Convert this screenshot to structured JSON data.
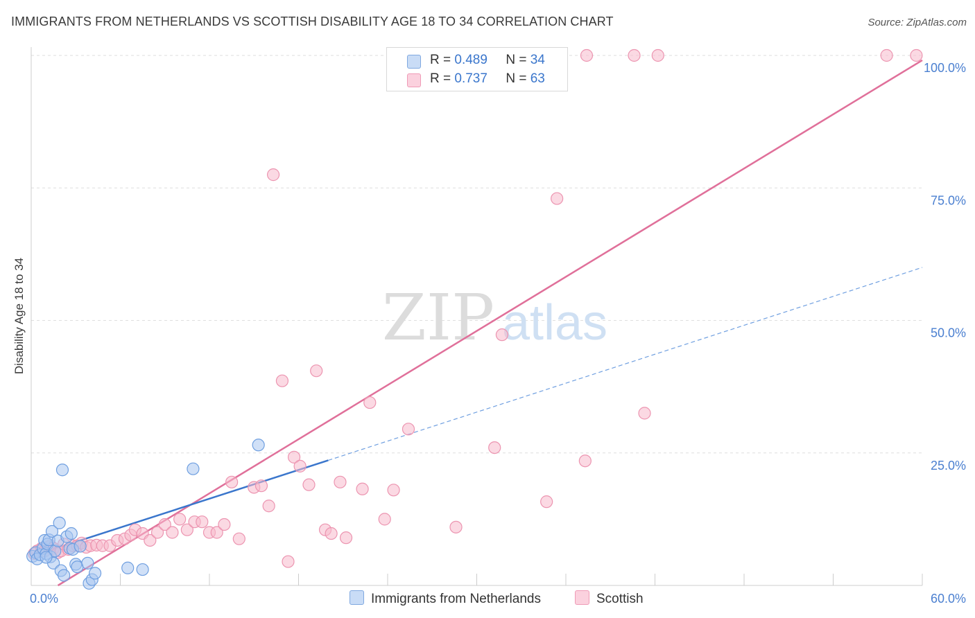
{
  "header": {
    "title": "IMMIGRANTS FROM NETHERLANDS VS SCOTTISH DISABILITY AGE 18 TO 34 CORRELATION CHART",
    "source": "Source: ZipAtlas.com"
  },
  "watermark": {
    "zip": "ZIP",
    "atlas": "atlas"
  },
  "legend": {
    "rows": [
      {
        "r_label": "R =",
        "r_value": "0.489",
        "n_label": "N =",
        "n_value": "34",
        "color": "#a9c7f0"
      },
      {
        "r_label": "R =",
        "r_value": "0.737",
        "n_label": "N =",
        "n_value": "63",
        "color": "#f7b9cc"
      }
    ]
  },
  "bottom_legend": {
    "items": [
      {
        "label": "Immigrants from Netherlands",
        "color": "#a9c7f0"
      },
      {
        "label": "Scottish",
        "color": "#f7b9cc"
      }
    ]
  },
  "chart_data": {
    "type": "scatter",
    "ylabel": "Disability Age 18 to 34",
    "xlim": [
      0,
      60
    ],
    "ylim": [
      0,
      100
    ],
    "x_tick_labels": [
      "0.0%",
      "60.0%"
    ],
    "y_ticks": [
      25,
      50,
      75,
      100
    ],
    "y_tick_labels": [
      "25.0%",
      "50.0%",
      "75.0%",
      "100.0%"
    ],
    "grid": "horizontal dashed",
    "series": [
      {
        "name": "Immigrants from Netherlands",
        "color": "#a9c7f0",
        "stroke": "#6f9fe0",
        "line_color": "#3a76cc",
        "trend": {
          "x0": 0,
          "y0": 5.5,
          "x1": 20,
          "y1": 23.6,
          "x_ext": 60,
          "y_ext": 60
        },
        "points": [
          [
            0.1,
            5.5
          ],
          [
            0.3,
            6.2
          ],
          [
            0.4,
            5.0
          ],
          [
            0.6,
            5.8
          ],
          [
            0.8,
            7.0
          ],
          [
            0.9,
            8.5
          ],
          [
            1.0,
            6.0
          ],
          [
            1.1,
            7.8
          ],
          [
            1.2,
            8.6
          ],
          [
            1.3,
            5.4
          ],
          [
            1.4,
            10.2
          ],
          [
            1.5,
            4.2
          ],
          [
            1.6,
            6.5
          ],
          [
            1.8,
            8.4
          ],
          [
            1.9,
            11.8
          ],
          [
            2.0,
            2.8
          ],
          [
            2.1,
            21.8
          ],
          [
            2.2,
            1.9
          ],
          [
            2.4,
            9.2
          ],
          [
            2.6,
            7.0
          ],
          [
            2.7,
            9.8
          ],
          [
            2.8,
            6.8
          ],
          [
            3.0,
            4.0
          ],
          [
            3.1,
            3.5
          ],
          [
            3.3,
            7.4
          ],
          [
            3.8,
            4.2
          ],
          [
            3.9,
            0.4
          ],
          [
            4.1,
            1.1
          ],
          [
            4.3,
            2.3
          ],
          [
            6.5,
            3.3
          ],
          [
            7.5,
            3.0
          ],
          [
            10.9,
            22.0
          ],
          [
            15.3,
            26.5
          ],
          [
            1.0,
            5.3
          ]
        ]
      },
      {
        "name": "Scottish",
        "color": "#f7b9cc",
        "stroke": "#ec94b0",
        "line_color": "#e0709a",
        "trend": {
          "x0": 1.8,
          "y0": 0,
          "x1": 60,
          "y1": 99.1
        },
        "points": [
          [
            0.2,
            6.0
          ],
          [
            0.4,
            6.5
          ],
          [
            0.7,
            7.0
          ],
          [
            0.9,
            6.5
          ],
          [
            1.1,
            7.2
          ],
          [
            1.3,
            7.5
          ],
          [
            1.5,
            7.0
          ],
          [
            1.8,
            6.2
          ],
          [
            2.0,
            6.5
          ],
          [
            2.2,
            7.8
          ],
          [
            2.5,
            6.8
          ],
          [
            2.8,
            7.5
          ],
          [
            3.1,
            7.5
          ],
          [
            3.4,
            8.0
          ],
          [
            3.7,
            7.2
          ],
          [
            4.0,
            7.5
          ],
          [
            4.4,
            7.6
          ],
          [
            4.8,
            7.5
          ],
          [
            5.3,
            7.5
          ],
          [
            5.8,
            8.5
          ],
          [
            6.3,
            8.8
          ],
          [
            6.7,
            9.5
          ],
          [
            7.0,
            10.5
          ],
          [
            7.5,
            9.8
          ],
          [
            8.0,
            8.5
          ],
          [
            8.5,
            10.0
          ],
          [
            9.0,
            11.5
          ],
          [
            9.5,
            10.0
          ],
          [
            10.0,
            12.5
          ],
          [
            10.5,
            10.5
          ],
          [
            11.0,
            12.0
          ],
          [
            11.5,
            12.0
          ],
          [
            12.0,
            10.0
          ],
          [
            12.5,
            10.0
          ],
          [
            13.0,
            11.5
          ],
          [
            13.5,
            19.5
          ],
          [
            14.0,
            8.8
          ],
          [
            15.0,
            18.5
          ],
          [
            15.5,
            18.8
          ],
          [
            16.0,
            15.0
          ],
          [
            16.3,
            77.5
          ],
          [
            16.9,
            38.6
          ],
          [
            17.3,
            4.5
          ],
          [
            17.7,
            24.2
          ],
          [
            18.1,
            22.5
          ],
          [
            18.7,
            19.0
          ],
          [
            19.2,
            40.5
          ],
          [
            19.8,
            10.5
          ],
          [
            20.2,
            9.8
          ],
          [
            20.8,
            19.5
          ],
          [
            21.2,
            9.0
          ],
          [
            22.3,
            18.2
          ],
          [
            22.8,
            34.5
          ],
          [
            23.8,
            12.5
          ],
          [
            24.4,
            18.0
          ],
          [
            25.4,
            29.5
          ],
          [
            28.6,
            11.0
          ],
          [
            31.2,
            26.0
          ],
          [
            31.7,
            47.3
          ],
          [
            34.7,
            15.8
          ],
          [
            35.4,
            73.0
          ],
          [
            37.3,
            23.5
          ],
          [
            41.3,
            32.5
          ]
        ],
        "points_top": [
          [
            24.4,
            100
          ],
          [
            28.2,
            100
          ],
          [
            37.4,
            100
          ],
          [
            40.6,
            100
          ],
          [
            42.2,
            100
          ],
          [
            57.6,
            100
          ],
          [
            59.6,
            100
          ]
        ]
      }
    ]
  }
}
